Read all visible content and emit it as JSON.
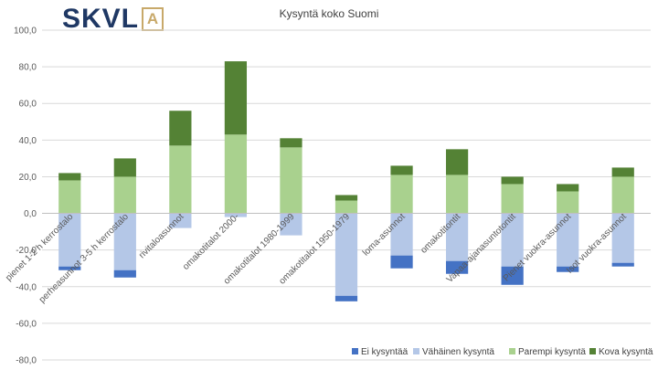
{
  "logo": {
    "text": "SKVL",
    "box_letter": "A"
  },
  "chart_data": {
    "type": "bar",
    "stacked": true,
    "title": "Kysyntä koko Suomi",
    "xlabel": "",
    "ylabel": "",
    "ylim": [
      -80,
      100
    ],
    "yticks": [
      "100,0",
      "80,0",
      "60,0",
      "40,0",
      "20,0",
      "0,0",
      "-20,0",
      "-40,0",
      "-60,0",
      "-80,0"
    ],
    "grid": true,
    "legend_position": "bottom-right",
    "categories": [
      "pienet 1-2 h kerrostalo",
      "perheasunnot 3-5 h kerrostalo",
      "rivitaloasunnot",
      "omakotitalot 2000-",
      "omakotitalot 1980-1999",
      "omakotitalot 1950-1979",
      "loma-asunnot",
      "omakotitontit",
      "Vapaa-ajanasuntotontit",
      "Pienet vuokra-asunnot",
      "Isot vuokra-asunnot"
    ],
    "series": [
      {
        "name": "Ei kysyntää",
        "color": "#4472c4",
        "values": [
          -2,
          -4,
          0,
          0,
          0,
          -3,
          -7,
          -7,
          -10,
          -3,
          -2
        ]
      },
      {
        "name": "Vähäinen kysyntä",
        "color": "#b4c7e7",
        "values": [
          -29,
          -31,
          -8,
          -2,
          -12,
          -45,
          -23,
          -26,
          -29,
          -29,
          -27
        ]
      },
      {
        "name": "Parempi kysyntä",
        "color": "#a9d18e",
        "values": [
          18,
          20,
          37,
          43,
          36,
          7,
          21,
          21,
          16,
          12,
          20
        ]
      },
      {
        "name": "Kova kysyntä",
        "color": "#548235",
        "values": [
          4,
          10,
          19,
          40,
          5,
          3,
          5,
          14,
          4,
          4,
          5
        ]
      }
    ]
  }
}
